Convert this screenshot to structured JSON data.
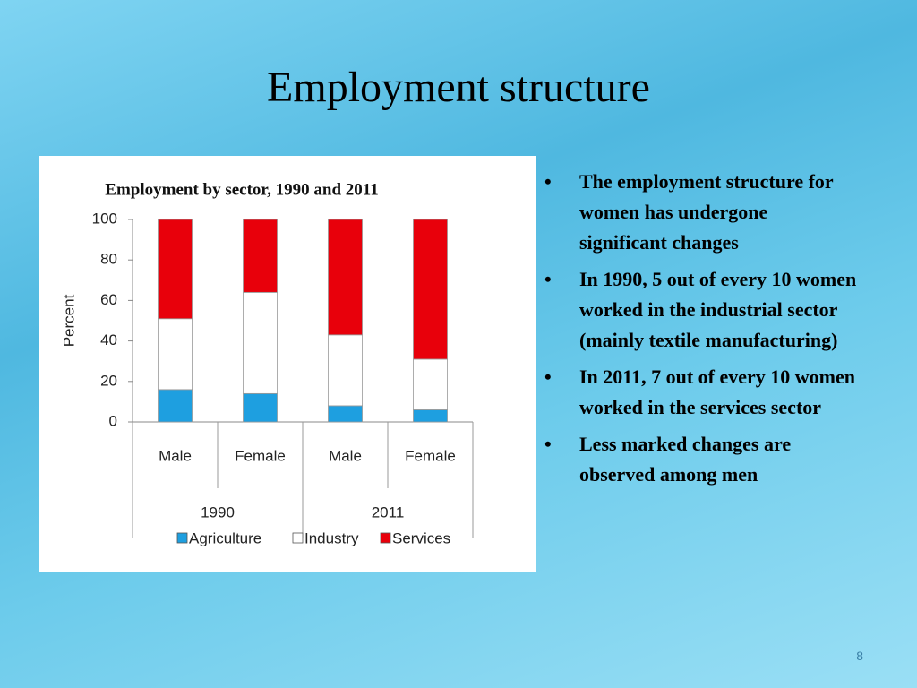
{
  "title": "Employment structure",
  "bullets": [
    "The employment structure  for women has undergone significant changes",
    "In 1990, 5 out of every 10 women worked in the industrial sector (mainly textile manufacturing)",
    "In 2011, 7 out of every 10 women worked in the services sector",
    "Less marked changes are observed among men"
  ],
  "page_number": "8",
  "chart_data": {
    "type": "stacked_bar",
    "title": "Employment by sector, 1990 and 2011",
    "ylabel": "Percent",
    "categories": [
      "Male",
      "Female",
      "Male",
      "Female"
    ],
    "groups": [
      "1990",
      "2011"
    ],
    "series": [
      {
        "name": "Agriculture",
        "color": "#1e9fe0",
        "values": [
          16,
          14,
          8,
          6
        ]
      },
      {
        "name": "Industry",
        "color": "#ffffff",
        "values": [
          35,
          50,
          35,
          25
        ]
      },
      {
        "name": "Services",
        "color": "#e8000b",
        "values": [
          49,
          36,
          57,
          69
        ]
      }
    ],
    "ylim": [
      0,
      100
    ],
    "yticks": [
      0,
      20,
      40,
      60,
      80,
      100
    ]
  }
}
